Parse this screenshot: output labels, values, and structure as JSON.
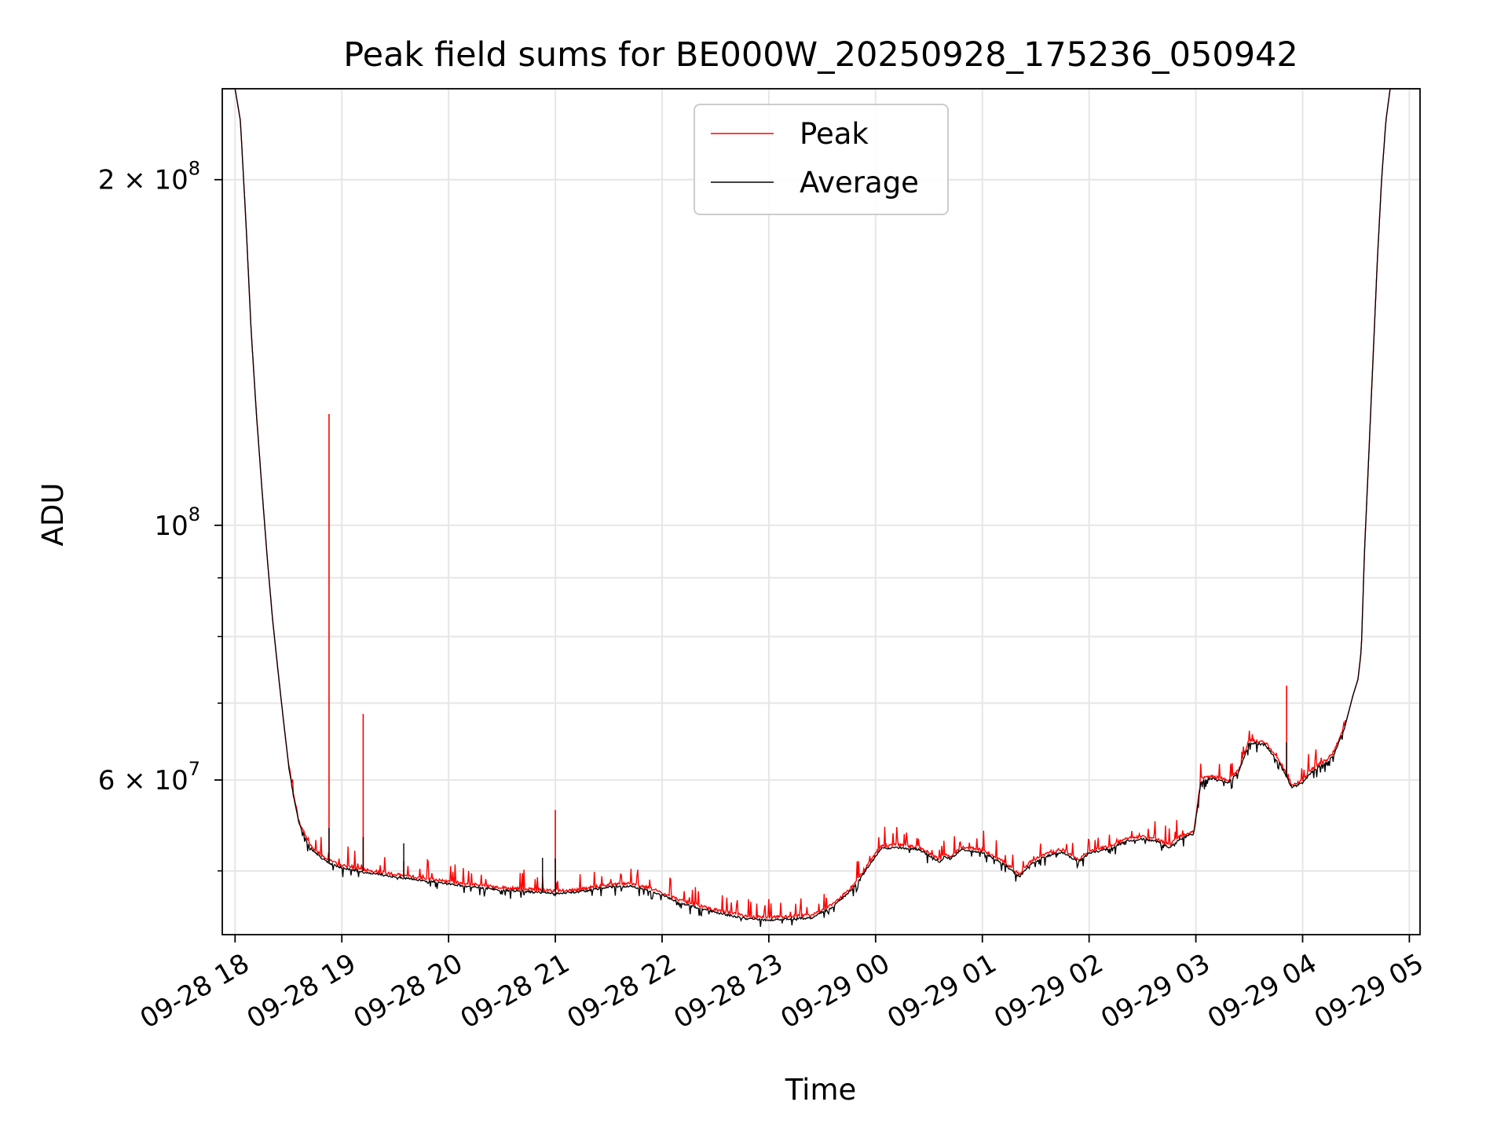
{
  "chart_data": {
    "type": "line",
    "title": "Peak field sums for BE000W_20250928_175236_050942",
    "xlabel": "Time",
    "ylabel": "ADU",
    "yscale": "log",
    "ylim": [
      44000000,
      240000000
    ],
    "xlim": [
      17.88,
      29.1
    ],
    "grid": true,
    "legend_position": "upper center",
    "x_ticks": [
      {
        "value": 18,
        "label": "09-28 18"
      },
      {
        "value": 19,
        "label": "09-28 19"
      },
      {
        "value": 20,
        "label": "09-28 20"
      },
      {
        "value": 21,
        "label": "09-28 21"
      },
      {
        "value": 22,
        "label": "09-28 22"
      },
      {
        "value": 23,
        "label": "09-28 23"
      },
      {
        "value": 24,
        "label": "09-29 00"
      },
      {
        "value": 25,
        "label": "09-29 01"
      },
      {
        "value": 26,
        "label": "09-29 02"
      },
      {
        "value": 27,
        "label": "09-29 03"
      },
      {
        "value": 28,
        "label": "09-29 04"
      },
      {
        "value": 29,
        "label": "09-29 05"
      }
    ],
    "y_ticks": [
      {
        "value": 60000000,
        "base": "6 × 10",
        "exp": "7"
      },
      {
        "value": 100000000,
        "base": "10",
        "exp": "8"
      },
      {
        "value": 200000000,
        "base": "2 × 10",
        "exp": "8"
      }
    ],
    "y_minor_ticks": [
      50000000,
      70000000,
      80000000,
      90000000
    ],
    "series": [
      {
        "name": "Peak",
        "color": "#ff0000",
        "spikes": [
          {
            "x": 18.88,
            "y": 125000000
          },
          {
            "x": 19.2,
            "y": 68500000
          },
          {
            "x": 19.58,
            "y": 51000000
          },
          {
            "x": 20.88,
            "y": 49500000
          },
          {
            "x": 21.0,
            "y": 56500000
          },
          {
            "x": 27.85,
            "y": 72500000
          }
        ]
      },
      {
        "name": "Average",
        "color": "#000000",
        "points": [
          [
            17.88,
            240000000
          ],
          [
            18.0,
            240000000
          ],
          [
            18.05,
            225000000
          ],
          [
            18.1,
            185000000
          ],
          [
            18.15,
            148000000
          ],
          [
            18.2,
            125000000
          ],
          [
            18.25,
            108000000
          ],
          [
            18.3,
            94000000
          ],
          [
            18.35,
            83000000
          ],
          [
            18.4,
            75000000
          ],
          [
            18.45,
            68000000
          ],
          [
            18.5,
            62000000
          ],
          [
            18.55,
            58000000
          ],
          [
            18.6,
            55000000
          ],
          [
            18.7,
            52500000
          ],
          [
            18.8,
            51500000
          ],
          [
            18.9,
            50800000
          ],
          [
            19.0,
            50400000
          ],
          [
            19.2,
            50000000
          ],
          [
            19.5,
            49500000
          ],
          [
            20.0,
            48800000
          ],
          [
            20.5,
            48200000
          ],
          [
            21.0,
            47900000
          ],
          [
            21.2,
            48000000
          ],
          [
            21.5,
            48500000
          ],
          [
            21.7,
            48600000
          ],
          [
            21.9,
            48100000
          ],
          [
            22.2,
            46900000
          ],
          [
            22.5,
            46100000
          ],
          [
            22.8,
            45500000
          ],
          [
            23.0,
            45400000
          ],
          [
            23.2,
            45500000
          ],
          [
            23.4,
            45600000
          ],
          [
            23.6,
            46600000
          ],
          [
            23.8,
            48500000
          ],
          [
            23.95,
            50800000
          ],
          [
            24.05,
            52400000
          ],
          [
            24.2,
            52500000
          ],
          [
            24.4,
            52300000
          ],
          [
            24.5,
            51700000
          ],
          [
            24.6,
            51000000
          ],
          [
            24.65,
            51600000
          ],
          [
            24.7,
            51300000
          ],
          [
            24.8,
            52300000
          ],
          [
            25.0,
            52000000
          ],
          [
            25.2,
            50800000
          ],
          [
            25.35,
            49500000
          ],
          [
            25.45,
            50800000
          ],
          [
            25.6,
            51600000
          ],
          [
            25.75,
            52000000
          ],
          [
            25.9,
            51000000
          ],
          [
            26.0,
            51900000
          ],
          [
            26.2,
            52400000
          ],
          [
            26.35,
            53200000
          ],
          [
            26.5,
            53400000
          ],
          [
            26.65,
            53100000
          ],
          [
            26.75,
            52500000
          ],
          [
            26.85,
            53400000
          ],
          [
            26.98,
            54000000
          ],
          [
            27.05,
            60000000
          ],
          [
            27.15,
            60300000
          ],
          [
            27.3,
            59800000
          ],
          [
            27.4,
            61000000
          ],
          [
            27.5,
            64800000
          ],
          [
            27.65,
            64500000
          ],
          [
            27.8,
            61800000
          ],
          [
            27.9,
            59200000
          ],
          [
            28.0,
            59800000
          ],
          [
            28.1,
            61300000
          ],
          [
            28.25,
            62500000
          ],
          [
            28.3,
            63500000
          ],
          [
            28.4,
            67000000
          ],
          [
            28.47,
            71000000
          ],
          [
            28.52,
            73500000
          ],
          [
            28.55,
            78000000
          ],
          [
            28.58,
            95000000
          ],
          [
            28.62,
            115000000
          ],
          [
            28.66,
            140000000
          ],
          [
            28.7,
            170000000
          ],
          [
            28.74,
            200000000
          ],
          [
            28.78,
            225000000
          ],
          [
            28.82,
            240000000
          ],
          [
            29.1,
            240000000
          ]
        ]
      }
    ]
  }
}
